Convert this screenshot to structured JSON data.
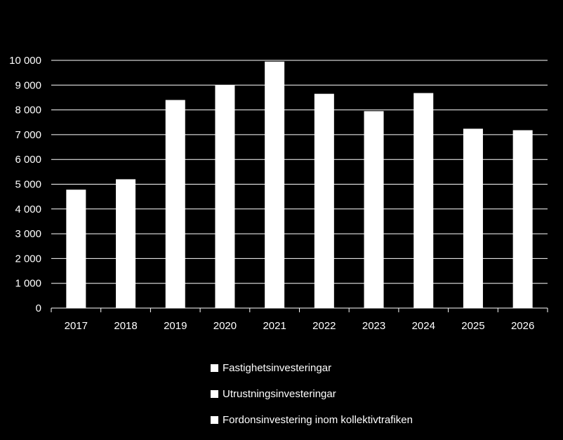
{
  "chart_data": {
    "type": "bar",
    "stacked": true,
    "categories": [
      "2017",
      "2018",
      "2019",
      "2020",
      "2021",
      "2022",
      "2023",
      "2024",
      "2025",
      "2026"
    ],
    "series": [
      {
        "name": "Fastighetsinvesteringar",
        "color": "#ffffff",
        "values": [
          4780,
          5200,
          8400,
          9000,
          9950,
          8650,
          7950,
          8680,
          7240,
          7180
        ]
      },
      {
        "name": "Utrustningsinvesteringar",
        "color": "#ffffff",
        "values": [
          0,
          0,
          0,
          0,
          0,
          0,
          0,
          0,
          0,
          0
        ]
      },
      {
        "name": "Fordonsinvestering inom kollektivtrafiken",
        "color": "#ffffff",
        "values": [
          0,
          0,
          0,
          0,
          0,
          0,
          0,
          0,
          0,
          0
        ]
      }
    ],
    "y_ticks": [
      0,
      1000,
      2000,
      3000,
      4000,
      5000,
      6000,
      7000,
      8000,
      9000,
      10000
    ],
    "y_tick_labels": [
      "0",
      "1 000",
      "2 000",
      "3 000",
      "4 000",
      "5 000",
      "6 000",
      "7 000",
      "8 000",
      "9 000",
      "10 000"
    ],
    "ylim": [
      0,
      10000
    ],
    "grid": true,
    "legend_position": "bottom",
    "background": "#000000",
    "gridline_color": "#ffffff",
    "bar_color": "#ffffff"
  }
}
